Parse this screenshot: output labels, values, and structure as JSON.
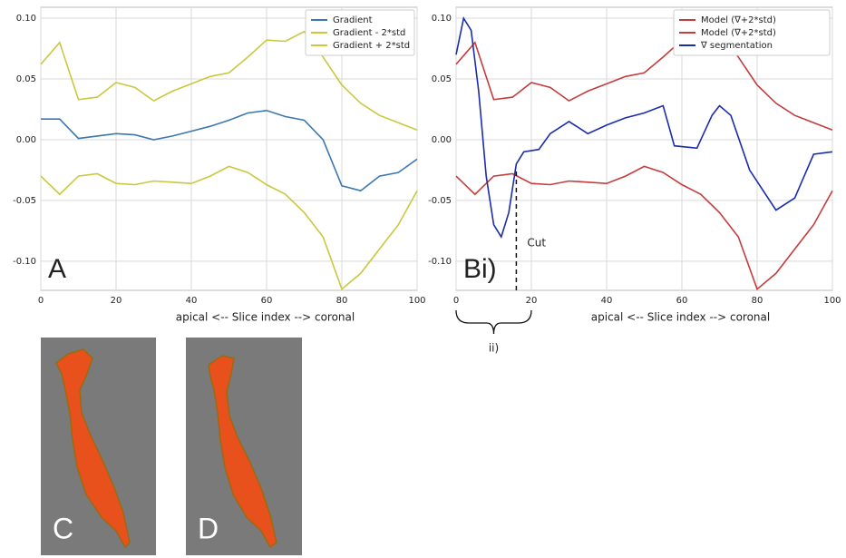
{
  "chart_data": [
    {
      "type": "line",
      "panel": "A",
      "xlabel": "apical <-- Slice index --> coronal",
      "x": [
        0,
        5,
        10,
        15,
        20,
        25,
        30,
        35,
        40,
        45,
        50,
        55,
        60,
        65,
        70,
        75,
        80,
        85,
        90,
        95,
        100
      ],
      "xlim": [
        0,
        100
      ],
      "xticks": [
        0,
        20,
        40,
        60,
        80,
        100
      ],
      "ylim": [
        -0.124,
        0.109
      ],
      "yticks": [
        {
          "value": 0.1,
          "label": "0.10"
        },
        0.05,
        {
          "value": 0,
          "label": "0.00"
        },
        -0.05,
        {
          "value": -0.1,
          "label": "-0.10"
        }
      ],
      "grid": true,
      "legend": "upper right",
      "series": [
        {
          "name": "Gradient",
          "color": "#3b78b0",
          "values": [
            0.017,
            0.017,
            0.001,
            0.003,
            0.005,
            0.004,
            0.0,
            0.003,
            0.007,
            0.011,
            0.016,
            0.022,
            0.024,
            0.019,
            0.016,
            0.0,
            -0.038,
            -0.042,
            -0.03,
            -0.027,
            -0.016
          ]
        },
        {
          "name": "Gradient - 2*std",
          "color": "#c9c83e",
          "values": [
            0.062,
            0.08,
            0.033,
            0.035,
            0.047,
            0.043,
            0.032,
            0.04,
            0.046,
            0.052,
            0.055,
            0.068,
            0.082,
            0.081,
            0.089,
            0.068,
            0.045,
            0.03,
            0.02,
            0.014,
            0.008
          ]
        },
        {
          "name": "Gradient + 2*std",
          "color": "#c9c83e",
          "values": [
            -0.03,
            -0.045,
            -0.03,
            -0.028,
            -0.036,
            -0.037,
            -0.034,
            -0.035,
            -0.036,
            -0.03,
            -0.022,
            -0.027,
            -0.037,
            -0.045,
            -0.06,
            -0.08,
            -0.123,
            -0.11,
            -0.09,
            -0.07,
            -0.042
          ]
        }
      ]
    },
    {
      "type": "line",
      "panel": "Bi)",
      "xlabel": "apical <-- Slice index --> coronal",
      "x": [
        0,
        5,
        10,
        15,
        20,
        25,
        30,
        35,
        40,
        45,
        50,
        55,
        60,
        65,
        70,
        75,
        80,
        85,
        90,
        95,
        100
      ],
      "xlim": [
        0,
        100
      ],
      "xticks": [
        0,
        20,
        40,
        60,
        80,
        100
      ],
      "ylim": [
        -0.124,
        0.109
      ],
      "yticks": [
        {
          "value": 0.1,
          "label": "0.10"
        },
        0.05,
        {
          "value": 0,
          "label": "0.00"
        },
        -0.05,
        {
          "value": -0.1,
          "label": "-0.10"
        }
      ],
      "grid": true,
      "legend": "upper right",
      "annotations": [
        {
          "text": "Cut",
          "x": 16
        }
      ],
      "brace": {
        "text": "ii)",
        "x": [
          0,
          20
        ]
      },
      "series": [
        {
          "name": "Model (∇+2*std)",
          "color": "#c43c3c",
          "values": [
            0.062,
            0.08,
            0.033,
            0.035,
            0.047,
            0.043,
            0.032,
            0.04,
            0.046,
            0.052,
            0.055,
            0.068,
            0.082,
            0.081,
            0.089,
            0.068,
            0.045,
            0.03,
            0.02,
            0.014,
            0.008
          ]
        },
        {
          "name": "Model (∇+2*std)",
          "color": "#c43c3c",
          "values": [
            -0.03,
            -0.045,
            -0.03,
            -0.028,
            -0.036,
            -0.037,
            -0.034,
            -0.035,
            -0.036,
            -0.03,
            -0.022,
            -0.027,
            -0.037,
            -0.045,
            -0.06,
            -0.08,
            -0.123,
            -0.11,
            -0.09,
            -0.07,
            -0.042
          ]
        },
        {
          "name": "∇ segmentation",
          "color": "#1b2cae",
          "x": [
            0,
            2,
            4,
            6,
            8,
            10,
            12,
            14,
            16,
            18,
            22,
            25,
            30,
            35,
            40,
            45,
            50,
            55,
            58,
            64,
            68,
            70,
            73,
            78,
            85,
            90,
            95,
            100
          ],
          "values": [
            0.07,
            0.1,
            0.09,
            0.04,
            -0.03,
            -0.07,
            -0.08,
            -0.06,
            -0.02,
            -0.01,
            -0.008,
            0.005,
            0.015,
            0.005,
            0.012,
            0.018,
            0.022,
            0.028,
            -0.005,
            -0.007,
            0.02,
            0.028,
            0.02,
            -0.025,
            -0.058,
            -0.048,
            -0.012,
            -0.01
          ]
        }
      ]
    }
  ],
  "panels": [
    {
      "label": "C"
    },
    {
      "label": "D"
    }
  ]
}
